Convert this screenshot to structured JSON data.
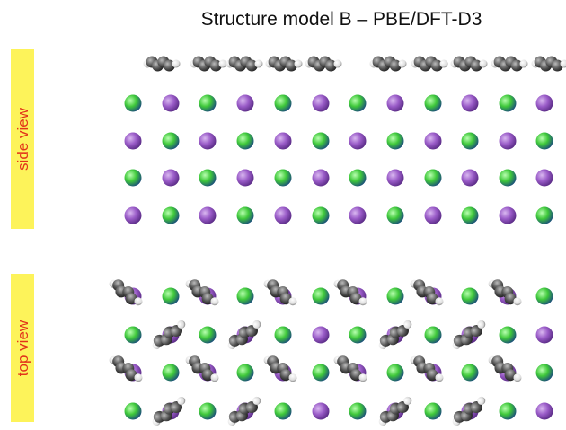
{
  "title": "Structure model B – PBE/DFT-D3",
  "panels": [
    {
      "label": "side view"
    },
    {
      "label": "top view"
    }
  ]
}
